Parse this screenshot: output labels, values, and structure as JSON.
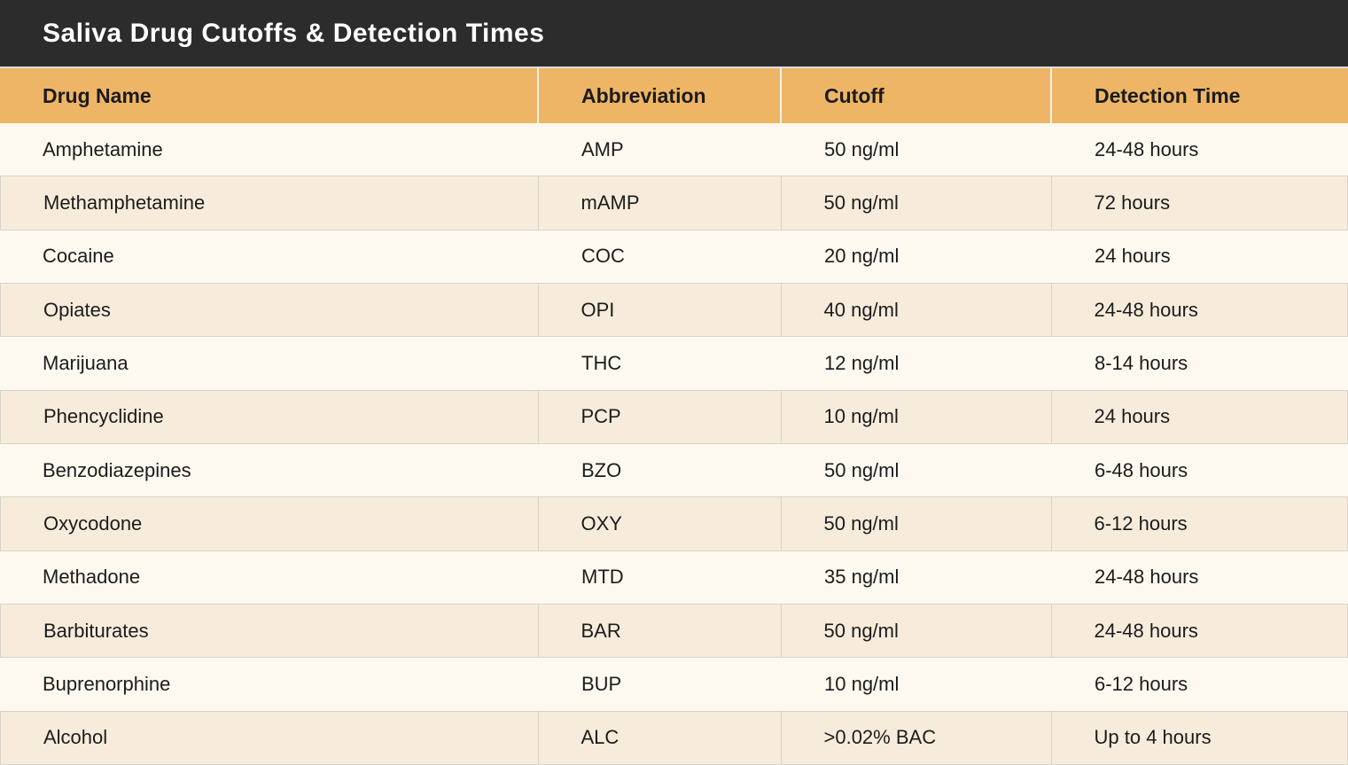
{
  "title_bar": {
    "title": "Saliva Drug Cutoffs & Detection Times"
  },
  "chart_data": {
    "type": "table",
    "title": "Saliva Drug Cutoffs & Detection Times",
    "columns": [
      "Drug Name",
      "Abbreviation",
      "Cutoff",
      "Detection Time"
    ],
    "rows": [
      [
        "Amphetamine",
        "AMP",
        "50 ng/ml",
        "24-48 hours"
      ],
      [
        "Methamphetamine",
        "mAMP",
        "50 ng/ml",
        "72 hours"
      ],
      [
        "Cocaine",
        "COC",
        "20 ng/ml",
        "24 hours"
      ],
      [
        "Opiates",
        "OPI",
        "40 ng/ml",
        "24-48 hours"
      ],
      [
        "Marijuana",
        "THC",
        "12 ng/ml",
        "8-14 hours"
      ],
      [
        "Phencyclidine",
        "PCP",
        "10 ng/ml",
        "24 hours"
      ],
      [
        "Benzodiazepines",
        "BZO",
        "50 ng/ml",
        "6-48 hours"
      ],
      [
        "Oxycodone",
        "OXY",
        "50 ng/ml",
        "6-12 hours"
      ],
      [
        "Methadone",
        "MTD",
        "35 ng/ml",
        "24-48 hours"
      ],
      [
        "Barbiturates",
        "BAR",
        "50 ng/ml",
        "24-48 hours"
      ],
      [
        "Buprenorphine",
        "BUP",
        "10 ng/ml",
        "6-12 hours"
      ],
      [
        "Alcohol",
        "ALC",
        ">0.02% BAC",
        "Up to 4 hours"
      ]
    ],
    "layout": {
      "legend": "none",
      "grid": "shaded-rows-bordered",
      "row_striping": "alternating"
    }
  },
  "colors": {
    "title_bar_bg": "#2C2C2C",
    "title_text": "#FFFFFF",
    "header_bg": "#EEB566",
    "header_divider": "#F7F3EA",
    "row_light_bg": "#FDF9F0",
    "row_shaded_bg": "#F7ECDB",
    "row_border": "#D8D4CA",
    "body_text": "#1C1C1C"
  }
}
